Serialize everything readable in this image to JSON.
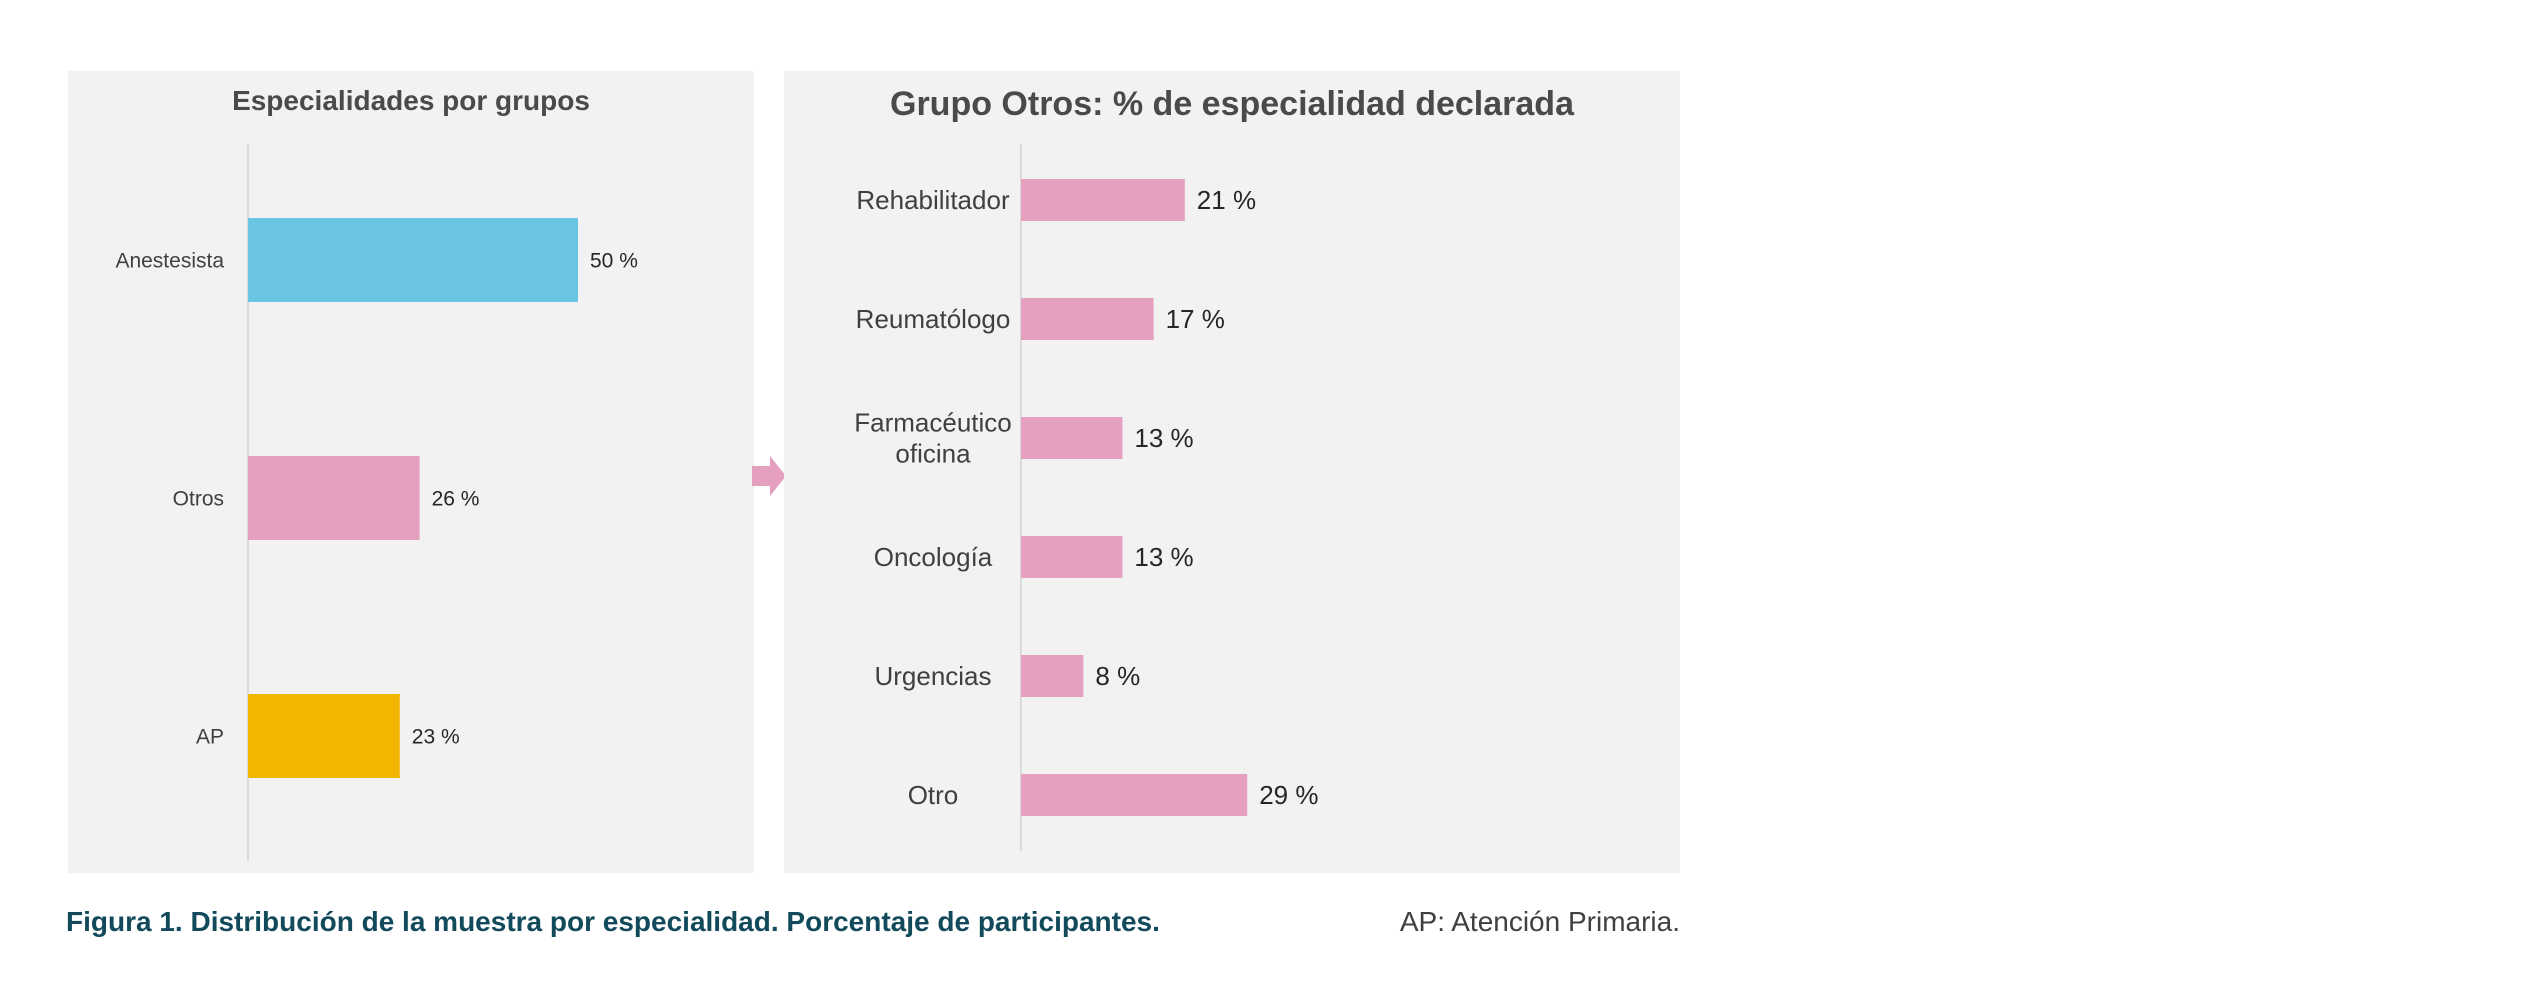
{
  "caption": {
    "figure": "Figura 1. Distribución de la muestra por especialidad. Porcentaje de participantes.",
    "note": "AP: Atención Primaria."
  },
  "chart_data": [
    {
      "type": "bar",
      "orientation": "horizontal",
      "title": "Especialidades por grupos",
      "categories": [
        "Anestesista",
        "Otros",
        "AP"
      ],
      "values": [
        50,
        26,
        23
      ],
      "value_labels": [
        "50 %",
        "26 %",
        "23 %"
      ],
      "colors": [
        "#6cc4e3",
        "#e5a0c0",
        "#f2b600"
      ],
      "xlim": [
        0,
        100
      ],
      "grid": false
    },
    {
      "type": "bar",
      "orientation": "horizontal",
      "title": "Grupo Otros: % de especialidad declarada",
      "categories": [
        "Rehabilitador",
        "Reumatólogo",
        "Farmacéutico oficina",
        "Oncología",
        "Urgencias",
        "Otro"
      ],
      "values": [
        21,
        17,
        13,
        13,
        8,
        29
      ],
      "value_labels": [
        "21 %",
        "17 %",
        "13 %",
        "13 %",
        "8 %",
        "29 %"
      ],
      "colors": [
        "#e5a0c0",
        "#e5a0c0",
        "#e5a0c0",
        "#e5a0c0",
        "#e5a0c0",
        "#e5a0c0"
      ],
      "xlim": [
        0,
        100
      ],
      "grid": false
    }
  ],
  "connector": {
    "color": "#e5a0c0",
    "icon": "arrow-right-icon"
  }
}
